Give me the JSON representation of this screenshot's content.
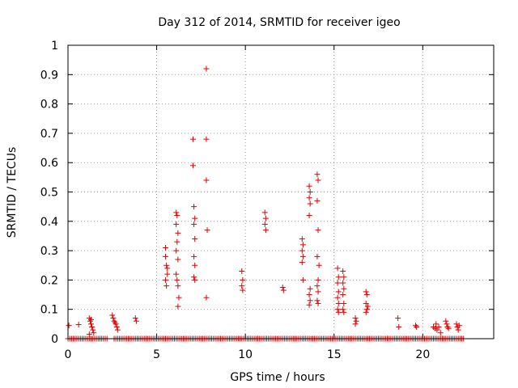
{
  "chart_data": {
    "type": "scatter",
    "title": "Day 312 of 2014, SRMTID for receiver igeo",
    "xlabel": "GPS time / hours",
    "ylabel": "SRMTID / TECUs",
    "xlim": [
      0,
      24
    ],
    "ylim": [
      0,
      1
    ],
    "xticks": [
      0,
      5,
      10,
      15,
      20
    ],
    "xtick_labels": [
      "0",
      "5",
      "10",
      "15",
      "20"
    ],
    "yticks": [
      0,
      0.1,
      0.2,
      0.3,
      0.4,
      0.5,
      0.6,
      0.7,
      0.8,
      0.9,
      1
    ],
    "ytick_labels": [
      "0",
      "0.1",
      "0.2",
      "0.3",
      "0.4",
      "0.5",
      "0.6",
      "0.7",
      "0.8",
      "0.9",
      "1"
    ],
    "grid": true,
    "marker": "+",
    "marker_color": "#e00000",
    "series": [
      {
        "name": "SRMTID",
        "points": [
          [
            0.05,
            0.045
          ],
          [
            0.6,
            0.048
          ],
          [
            1.2,
            0.07
          ],
          [
            1.25,
            0.06
          ],
          [
            1.3,
            0.05
          ],
          [
            1.35,
            0.04
          ],
          [
            1.4,
            0.03
          ],
          [
            1.3,
            0.065
          ],
          [
            1.45,
            0.02
          ],
          [
            1.2,
            0.015
          ],
          [
            2.5,
            0.08
          ],
          [
            2.55,
            0.07
          ],
          [
            2.6,
            0.06
          ],
          [
            2.7,
            0.05
          ],
          [
            2.75,
            0.04
          ],
          [
            2.8,
            0.03
          ],
          [
            2.65,
            0.055
          ],
          [
            3.8,
            0.07
          ],
          [
            3.85,
            0.06
          ],
          [
            5.5,
            0.31
          ],
          [
            5.5,
            0.28
          ],
          [
            5.55,
            0.25
          ],
          [
            5.6,
            0.22
          ],
          [
            5.5,
            0.2
          ],
          [
            5.55,
            0.18
          ],
          [
            5.6,
            0.24
          ],
          [
            6.1,
            0.43
          ],
          [
            6.15,
            0.42
          ],
          [
            6.1,
            0.39
          ],
          [
            6.2,
            0.36
          ],
          [
            6.15,
            0.33
          ],
          [
            6.1,
            0.3
          ],
          [
            6.2,
            0.27
          ],
          [
            6.1,
            0.22
          ],
          [
            6.2,
            0.18
          ],
          [
            6.25,
            0.14
          ],
          [
            6.2,
            0.11
          ],
          [
            6.15,
            0.2
          ],
          [
            7.05,
            0.68
          ],
          [
            7.05,
            0.59
          ],
          [
            7.1,
            0.45
          ],
          [
            7.15,
            0.41
          ],
          [
            7.1,
            0.39
          ],
          [
            7.15,
            0.34
          ],
          [
            7.1,
            0.28
          ],
          [
            7.15,
            0.25
          ],
          [
            7.1,
            0.21
          ],
          [
            7.15,
            0.2
          ],
          [
            7.8,
            0.92
          ],
          [
            7.8,
            0.68
          ],
          [
            7.8,
            0.54
          ],
          [
            7.85,
            0.37
          ],
          [
            7.8,
            0.14
          ],
          [
            9.8,
            0.23
          ],
          [
            9.85,
            0.2
          ],
          [
            9.8,
            0.18
          ],
          [
            9.85,
            0.165
          ],
          [
            11.1,
            0.43
          ],
          [
            11.15,
            0.41
          ],
          [
            11.1,
            0.39
          ],
          [
            11.15,
            0.37
          ],
          [
            12.1,
            0.175
          ],
          [
            12.15,
            0.165
          ],
          [
            13.2,
            0.34
          ],
          [
            13.25,
            0.32
          ],
          [
            13.2,
            0.3
          ],
          [
            13.25,
            0.28
          ],
          [
            13.2,
            0.26
          ],
          [
            13.25,
            0.2
          ],
          [
            13.6,
            0.52
          ],
          [
            13.65,
            0.5
          ],
          [
            13.6,
            0.48
          ],
          [
            13.65,
            0.46
          ],
          [
            13.6,
            0.42
          ],
          [
            13.65,
            0.17
          ],
          [
            13.6,
            0.15
          ],
          [
            13.65,
            0.13
          ],
          [
            13.6,
            0.115
          ],
          [
            14.05,
            0.56
          ],
          [
            14.1,
            0.54
          ],
          [
            14.05,
            0.47
          ],
          [
            14.1,
            0.37
          ],
          [
            14.05,
            0.28
          ],
          [
            14.15,
            0.25
          ],
          [
            14.1,
            0.2
          ],
          [
            14.05,
            0.18
          ],
          [
            14.1,
            0.16
          ],
          [
            14.05,
            0.13
          ],
          [
            14.1,
            0.12
          ],
          [
            15.2,
            0.24
          ],
          [
            15.25,
            0.21
          ],
          [
            15.2,
            0.19
          ],
          [
            15.25,
            0.16
          ],
          [
            15.2,
            0.14
          ],
          [
            15.25,
            0.12
          ],
          [
            15.2,
            0.1
          ],
          [
            15.25,
            0.09
          ],
          [
            15.5,
            0.23
          ],
          [
            15.55,
            0.21
          ],
          [
            15.5,
            0.19
          ],
          [
            15.55,
            0.17
          ],
          [
            15.5,
            0.15
          ],
          [
            15.55,
            0.12
          ],
          [
            15.5,
            0.1
          ],
          [
            15.55,
            0.09
          ],
          [
            16.2,
            0.07
          ],
          [
            16.25,
            0.06
          ],
          [
            16.2,
            0.05
          ],
          [
            16.8,
            0.16
          ],
          [
            16.85,
            0.15
          ],
          [
            16.8,
            0.12
          ],
          [
            16.9,
            0.11
          ],
          [
            16.85,
            0.1
          ],
          [
            16.8,
            0.09
          ],
          [
            18.6,
            0.07
          ],
          [
            18.65,
            0.04
          ],
          [
            19.6,
            0.045
          ],
          [
            19.65,
            0.04
          ],
          [
            20.6,
            0.04
          ],
          [
            20.7,
            0.035
          ],
          [
            20.8,
            0.03
          ],
          [
            20.9,
            0.04
          ],
          [
            21.0,
            0.02
          ],
          [
            20.75,
            0.05
          ],
          [
            21.3,
            0.06
          ],
          [
            21.35,
            0.05
          ],
          [
            21.4,
            0.04
          ],
          [
            21.45,
            0.035
          ],
          [
            21.9,
            0.05
          ],
          [
            21.95,
            0.04
          ],
          [
            22.0,
            0.03
          ],
          [
            22.05,
            0.045
          ]
        ],
        "baseline_zero_intervals": [
          [
            0,
            2.3
          ],
          [
            2.6,
            4.5
          ],
          [
            4.6,
            22.4
          ]
        ]
      }
    ]
  }
}
